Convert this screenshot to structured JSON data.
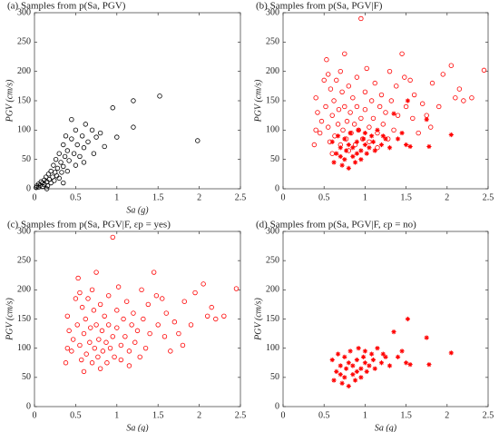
{
  "chart_data": [
    {
      "type": "scatter",
      "title": "(a) Samples from p(Sa, PGV)",
      "xlabel": "Sa (g)",
      "ylabel": "PGV (cm/s)",
      "xlim": [
        0,
        2.5
      ],
      "ylim": [
        0,
        300
      ],
      "xticks": [
        0,
        0.5,
        1,
        1.5,
        2,
        2.5
      ],
      "yticks": [
        0,
        50,
        100,
        150,
        200,
        250,
        300
      ],
      "series": [
        {
          "color": "#000000",
          "marker": "circle",
          "x": [
            0.02,
            0.03,
            0.05,
            0.05,
            0.07,
            0.08,
            0.1,
            0.1,
            0.12,
            0.12,
            0.14,
            0.15,
            0.16,
            0.17,
            0.18,
            0.2,
            0.2,
            0.22,
            0.23,
            0.24,
            0.25,
            0.26,
            0.27,
            0.28,
            0.3,
            0.3,
            0.32,
            0.33,
            0.35,
            0.35,
            0.37,
            0.38,
            0.4,
            0.4,
            0.42,
            0.45,
            0.45,
            0.48,
            0.5,
            0.5,
            0.52,
            0.55,
            0.58,
            0.6,
            0.62,
            0.65,
            0.7,
            0.72,
            0.75,
            0.8,
            0.85,
            0.95,
            1.0,
            1.2,
            1.2,
            1.52,
            1.98,
            0.15,
            0.35,
            0.6
          ],
          "values": [
            2,
            5,
            3,
            8,
            6,
            12,
            4,
            10,
            15,
            7,
            20,
            12,
            5,
            25,
            16,
            10,
            30,
            20,
            40,
            14,
            28,
            50,
            22,
            35,
            18,
            60,
            45,
            28,
            75,
            38,
            55,
            90,
            30,
            65,
            48,
            85,
            118,
            60,
            100,
            40,
            75,
            55,
            90,
            70,
            110,
            80,
            100,
            60,
            88,
            95,
            72,
            138,
            88,
            150,
            105,
            158,
            82,
            0,
            10,
            45
          ]
        }
      ]
    },
    {
      "type": "scatter",
      "title": "(b) Samples from p(Sa, PGV|F)",
      "ylabel": "PGV (cm/s)",
      "xlim": [
        0,
        2.5
      ],
      "ylim": [
        0,
        300
      ],
      "xticks": [
        0,
        0.5,
        1,
        1.5,
        2,
        2.5
      ],
      "yticks": [
        0,
        50,
        100,
        150,
        200,
        250,
        300
      ],
      "series": [
        {
          "color": "#ff0000",
          "marker": "circle",
          "x": [
            0.38,
            0.4,
            0.4,
            0.42,
            0.45,
            0.47,
            0.5,
            0.52,
            0.53,
            0.55,
            0.55,
            0.57,
            0.58,
            0.6,
            0.6,
            0.62,
            0.63,
            0.65,
            0.67,
            0.68,
            0.7,
            0.7,
            0.72,
            0.73,
            0.75,
            0.75,
            0.77,
            0.78,
            0.8,
            0.8,
            0.82,
            0.83,
            0.85,
            0.87,
            0.88,
            0.9,
            0.9,
            0.92,
            0.95,
            0.95,
            0.97,
            1.0,
            1.0,
            1.02,
            1.05,
            1.05,
            1.08,
            1.1,
            1.12,
            1.15,
            1.18,
            1.2,
            1.22,
            1.25,
            1.28,
            1.3,
            1.32,
            1.35,
            1.38,
            1.4,
            1.45,
            1.48,
            1.5,
            1.55,
            1.58,
            1.6,
            1.65,
            1.7,
            1.75,
            1.8,
            1.82,
            1.9,
            1.95,
            2.05,
            2.1,
            2.15,
            2.2,
            2.3,
            2.45,
            1.15
          ],
          "values": [
            75,
            100,
            155,
            130,
            95,
            115,
            185,
            140,
            220,
            195,
            105,
            80,
            170,
            60,
            125,
            150,
            90,
            185,
            110,
            135,
            75,
            200,
            165,
            100,
            230,
            140,
            85,
            115,
            175,
            65,
            130,
            95,
            155,
            110,
            75,
            190,
            140,
            100,
            290,
            120,
            85,
            165,
            135,
            205,
            105,
            80,
            150,
            120,
            180,
            95,
            140,
            160,
            110,
            130,
            85,
            200,
            150,
            100,
            175,
            125,
            230,
            190,
            140,
            185,
            120,
            160,
            95,
            145,
            125,
            105,
            180,
            140,
            195,
            210,
            155,
            170,
            150,
            155,
            202,
            70
          ]
        },
        {
          "color": "#ff0000",
          "marker": "star",
          "x": [
            0.6,
            0.62,
            0.65,
            0.67,
            0.7,
            0.7,
            0.72,
            0.75,
            0.75,
            0.77,
            0.8,
            0.8,
            0.82,
            0.85,
            0.85,
            0.88,
            0.9,
            0.9,
            0.92,
            0.95,
            0.95,
            0.98,
            1.0,
            1.0,
            1.02,
            1.05,
            1.08,
            1.1,
            1.12,
            1.15,
            1.2,
            1.22,
            1.25,
            1.3,
            1.35,
            1.4,
            1.45,
            1.5,
            1.52,
            1.55,
            1.75,
            1.78,
            2.05
          ],
          "values": [
            80,
            45,
            60,
            90,
            55,
            70,
            40,
            85,
            50,
            65,
            35,
            75,
            95,
            55,
            70,
            45,
            80,
            60,
            100,
            65,
            50,
            85,
            75,
            95,
            60,
            70,
            90,
            80,
            65,
            100,
            75,
            90,
            85,
            70,
            128,
            85,
            95,
            75,
            150,
            72,
            118,
            72,
            92
          ]
        }
      ]
    },
    {
      "type": "scatter",
      "title": "(c) Samples from p(Sa, PGV|F, εp = yes)",
      "xlabel": "Sa (g)",
      "ylabel": "PGV (cm/s)",
      "xlim": [
        0,
        2.5
      ],
      "ylim": [
        0,
        300
      ],
      "xticks": [
        0,
        0.5,
        1,
        1.5,
        2,
        2.5
      ],
      "yticks": [
        0,
        50,
        100,
        150,
        200,
        250,
        300
      ],
      "series": [
        {
          "color": "#ff0000",
          "marker": "circle",
          "x": [
            0.38,
            0.4,
            0.4,
            0.42,
            0.45,
            0.47,
            0.5,
            0.52,
            0.53,
            0.55,
            0.55,
            0.57,
            0.58,
            0.6,
            0.6,
            0.62,
            0.63,
            0.65,
            0.67,
            0.68,
            0.7,
            0.7,
            0.72,
            0.73,
            0.75,
            0.75,
            0.77,
            0.78,
            0.8,
            0.8,
            0.82,
            0.83,
            0.85,
            0.87,
            0.88,
            0.9,
            0.9,
            0.92,
            0.95,
            0.95,
            0.97,
            1.0,
            1.0,
            1.02,
            1.05,
            1.05,
            1.08,
            1.1,
            1.12,
            1.15,
            1.18,
            1.2,
            1.22,
            1.25,
            1.28,
            1.3,
            1.32,
            1.35,
            1.38,
            1.4,
            1.45,
            1.48,
            1.5,
            1.55,
            1.58,
            1.6,
            1.65,
            1.7,
            1.75,
            1.8,
            1.82,
            1.9,
            1.95,
            2.05,
            2.1,
            2.15,
            2.2,
            2.3,
            2.45,
            1.15
          ],
          "values": [
            75,
            100,
            155,
            130,
            95,
            115,
            185,
            140,
            220,
            195,
            105,
            80,
            170,
            60,
            125,
            150,
            90,
            185,
            110,
            135,
            75,
            200,
            165,
            100,
            230,
            140,
            85,
            115,
            175,
            65,
            130,
            95,
            155,
            110,
            75,
            190,
            140,
            100,
            290,
            120,
            85,
            165,
            135,
            205,
            105,
            80,
            150,
            120,
            180,
            95,
            140,
            160,
            110,
            130,
            85,
            200,
            150,
            100,
            175,
            125,
            230,
            190,
            140,
            185,
            120,
            160,
            95,
            145,
            125,
            105,
            180,
            140,
            195,
            210,
            155,
            170,
            150,
            155,
            202,
            70
          ]
        }
      ]
    },
    {
      "type": "scatter",
      "title": "(d) Samples from p(Sa, PGV|F, εp = no)",
      "xlabel": "Sa (g)",
      "ylabel": "PGV (cm/s)",
      "xlim": [
        0,
        2.5
      ],
      "ylim": [
        0,
        300
      ],
      "xticks": [
        0,
        0.5,
        1,
        1.5,
        2,
        2.5
      ],
      "yticks": [
        0,
        50,
        100,
        150,
        200,
        250,
        300
      ],
      "series": [
        {
          "color": "#ff0000",
          "marker": "star",
          "x": [
            0.6,
            0.62,
            0.65,
            0.67,
            0.7,
            0.7,
            0.72,
            0.75,
            0.75,
            0.77,
            0.8,
            0.8,
            0.82,
            0.85,
            0.85,
            0.88,
            0.9,
            0.9,
            0.92,
            0.95,
            0.95,
            0.98,
            1.0,
            1.0,
            1.02,
            1.05,
            1.08,
            1.1,
            1.12,
            1.15,
            1.2,
            1.22,
            1.25,
            1.3,
            1.35,
            1.4,
            1.45,
            1.5,
            1.52,
            1.55,
            1.75,
            1.78,
            2.05
          ],
          "values": [
            80,
            45,
            60,
            90,
            55,
            70,
            40,
            85,
            50,
            65,
            35,
            75,
            95,
            55,
            70,
            45,
            80,
            60,
            100,
            65,
            50,
            85,
            75,
            95,
            60,
            70,
            90,
            80,
            65,
            100,
            75,
            90,
            85,
            70,
            128,
            85,
            95,
            75,
            150,
            72,
            118,
            72,
            92
          ]
        }
      ]
    }
  ]
}
